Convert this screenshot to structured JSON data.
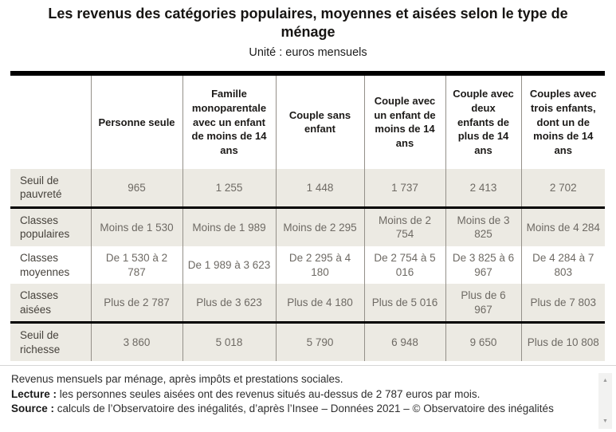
{
  "header": {
    "title": "Les revenus des catégories populaires, moyennes et aisées selon le type de ménage",
    "subtitle": "Unité : euros mensuels"
  },
  "chart_data": {
    "type": "table",
    "title": "Les revenus des catégories populaires, moyennes et aisées selon le type de ménage",
    "unit": "euros mensuels",
    "corner_label": "",
    "columns": [
      "Personne seule",
      "Famille monoparentale avec un enfant de moins de 14 ans",
      "Couple sans enfant",
      "Couple avec un enfant de moins de 14 ans",
      "Couple avec deux enfants de plus de 14 ans",
      "Couples avec trois enfants, dont un de moins de 14 ans"
    ],
    "sections": [
      {
        "name": "seuil-de-pauvrete",
        "rows": [
          {
            "label": "Seuil de pauvreté",
            "shaded": true,
            "values": [
              "965",
              "1 255",
              "1 448",
              "1 737",
              "2 413",
              "2 702"
            ]
          }
        ]
      },
      {
        "name": "classes",
        "rows": [
          {
            "label": "Classes populaires",
            "shaded": true,
            "values": [
              "Moins de 1 530",
              "Moins de 1 989",
              "Moins de 2 295",
              "Moins de 2 754",
              "Moins de 3 825",
              "Moins de 4 284"
            ]
          },
          {
            "label": "Classes moyennes",
            "shaded": false,
            "values": [
              "De 1 530 à 2 787",
              "De 1 989 à 3 623",
              "De 2 295 à 4 180",
              "De 2 754 à 5 016",
              "De 3 825 à 6 967",
              "De 4 284 à 7 803"
            ]
          },
          {
            "label": "Classes aisées",
            "shaded": true,
            "values": [
              "Plus de 2 787",
              "Plus de 3 623",
              "Plus de 4 180",
              "Plus de 5 016",
              "Plus de 6 967",
              "Plus de 7 803"
            ]
          }
        ]
      },
      {
        "name": "seuil-de-richesse",
        "rows": [
          {
            "label": "Seuil de richesse",
            "shaded": true,
            "values": [
              "3 860",
              "5 018",
              "5 790",
              "6 948",
              "9 650",
              "Plus de 10 808"
            ]
          }
        ]
      }
    ]
  },
  "footer": {
    "note": "Revenus mensuels par ménage, après impôts et prestations sociales.",
    "lecture_label": "Lecture :",
    "lecture_text": " les personnes seules aisées ont des revenus situés au-dessus de 2 787 euros par mois.",
    "source_label": "Source :",
    "source_text": " calculs de l’Observatoire des inégalités, d’après l’Insee – Données 2021 – © Observatoire des inégalités"
  },
  "icons": {
    "scroll_up_glyph": "▲",
    "scroll_down_glyph": "▼"
  },
  "colors": {
    "row_shade": "#eceae3",
    "grid_line": "#949089",
    "section_divider": "#000000",
    "data_text": "#6e6a64",
    "label_text": "#46423c"
  }
}
